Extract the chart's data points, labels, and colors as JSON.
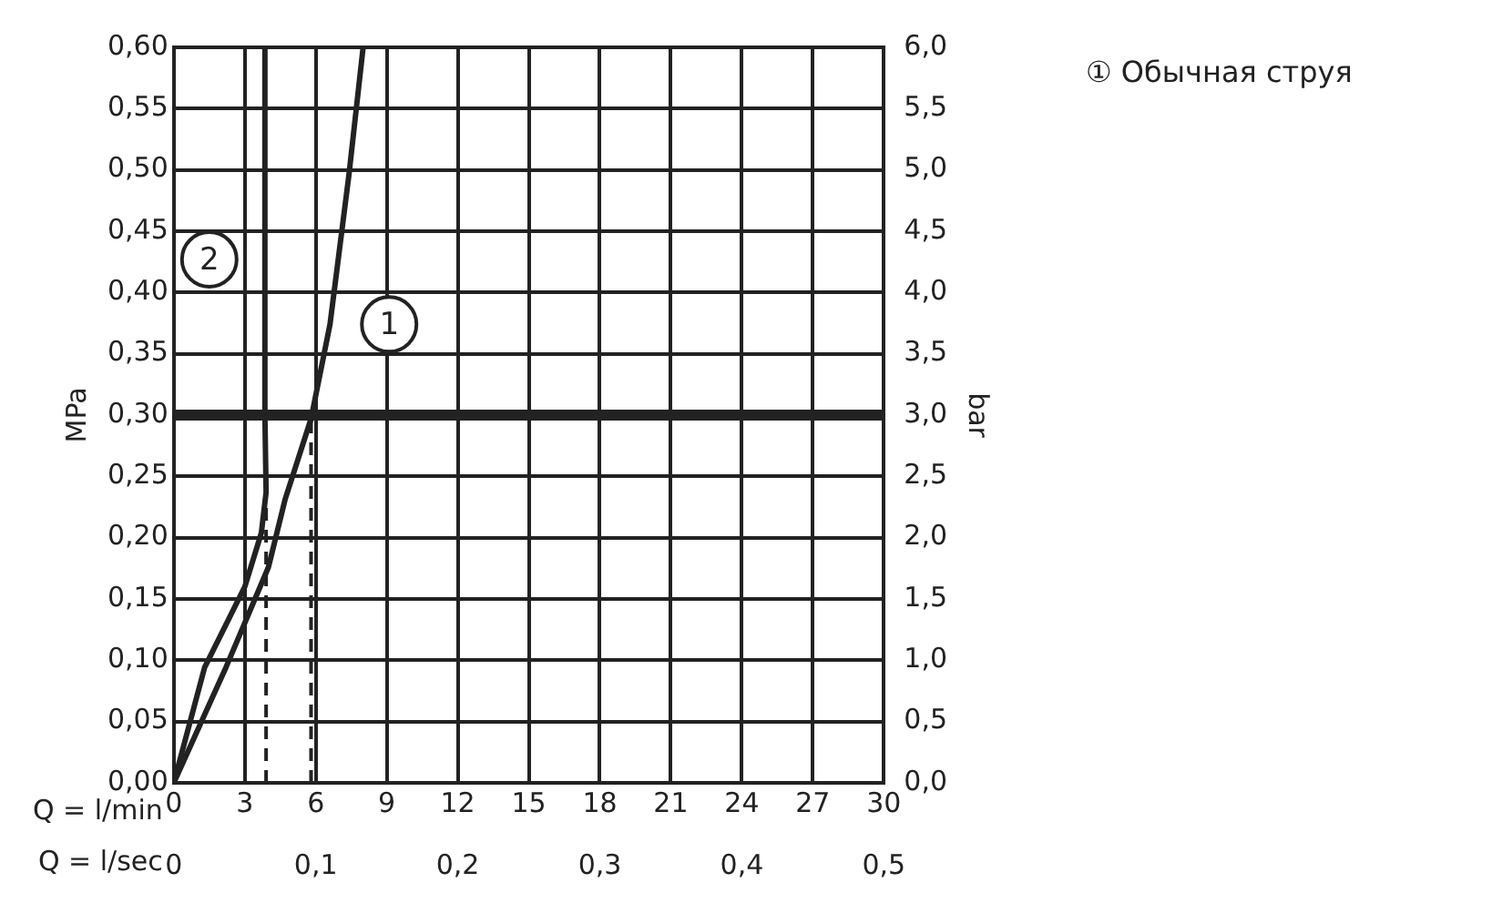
{
  "chart_data": {
    "type": "line",
    "xlabel": "Q = l/min",
    "x2label": "Q = l/sec",
    "ylabel": "MPa",
    "y2label": "bar",
    "xlim": [
      0,
      30
    ],
    "xticks": [
      0,
      3,
      6,
      9,
      12,
      15,
      18,
      21,
      24,
      27,
      30
    ],
    "x2lim": [
      0,
      0.5
    ],
    "x2ticks": [
      0,
      {
        "value": 0.1,
        "label": "0,1"
      },
      {
        "value": 0.2,
        "label": "0,2"
      },
      {
        "value": 0.3,
        "label": "0,3"
      },
      {
        "value": 0.4,
        "label": "0,4"
      },
      {
        "value": 0.5,
        "label": "0,5"
      }
    ],
    "ylim": [
      0,
      0.6
    ],
    "yticks": [
      {
        "value": 0,
        "label": "0,00"
      },
      {
        "value": 0.05,
        "label": "0,05"
      },
      {
        "value": 0.1,
        "label": "0,10"
      },
      {
        "value": 0.15,
        "label": "0,15"
      },
      {
        "value": 0.2,
        "label": "0,20"
      },
      {
        "value": 0.25,
        "label": "0,25"
      },
      {
        "value": 0.3,
        "label": "0,30"
      },
      {
        "value": 0.35,
        "label": "0,35"
      },
      {
        "value": 0.4,
        "label": "0,40"
      },
      {
        "value": 0.45,
        "label": "0,45"
      },
      {
        "value": 0.5,
        "label": "0,50"
      },
      {
        "value": 0.55,
        "label": "0,55"
      },
      {
        "value": 0.6,
        "label": "0,60"
      }
    ],
    "y2lim": [
      0,
      6
    ],
    "y2ticks": [
      {
        "value": 0,
        "label": "0,0"
      },
      {
        "value": 0.5,
        "label": "0,5"
      },
      {
        "value": 1,
        "label": "1,0"
      },
      {
        "value": 1.5,
        "label": "1,5"
      },
      {
        "value": 2,
        "label": "2,0"
      },
      {
        "value": 2.5,
        "label": "2,5"
      },
      {
        "value": 3,
        "label": "3,0"
      },
      {
        "value": 3.5,
        "label": "3,5"
      },
      {
        "value": 4,
        "label": "4,0"
      },
      {
        "value": 4.5,
        "label": "4,5"
      },
      {
        "value": 5,
        "label": "5,0"
      },
      {
        "value": 5.5,
        "label": "5,5"
      },
      {
        "value": 6,
        "label": "6,0"
      }
    ],
    "grid": true,
    "legend": "right",
    "marker": "none",
    "series": [
      {
        "name": "① Обычная струя",
        "color": "#222222",
        "x": [
          0,
          2.2,
          4,
          4.7,
          5.8,
          6.6,
          7.4,
          8
        ],
        "values": [
          0,
          0.094,
          0.176,
          0.231,
          0.297,
          0.374,
          0.496,
          0.6
        ]
      },
      {
        "color": "#222222",
        "x": [
          0,
          1.3,
          3,
          3.7,
          3.9,
          3.85,
          3.85
        ],
        "values": [
          0,
          0.094,
          0.16,
          0.204,
          0.237,
          0.3,
          0.6
        ]
      },
      {
        "color": "#222222",
        "line_style": "dashed",
        "x": [
          3.9,
          3.9
        ],
        "values": [
          0,
          0.23
        ]
      },
      {
        "color": "#222222",
        "line_style": "dashed",
        "x": [
          5.8,
          5.8
        ],
        "values": [
          0,
          0.3
        ]
      }
    ],
    "ref_lines": [
      {
        "axis": "y",
        "value": 0.3,
        "color": "#222222"
      }
    ],
    "annotations": [
      {
        "text": "1",
        "x": 9.1,
        "y": 0.374
      },
      {
        "text": "2",
        "x": 1.5,
        "y": 0.427
      }
    ]
  }
}
